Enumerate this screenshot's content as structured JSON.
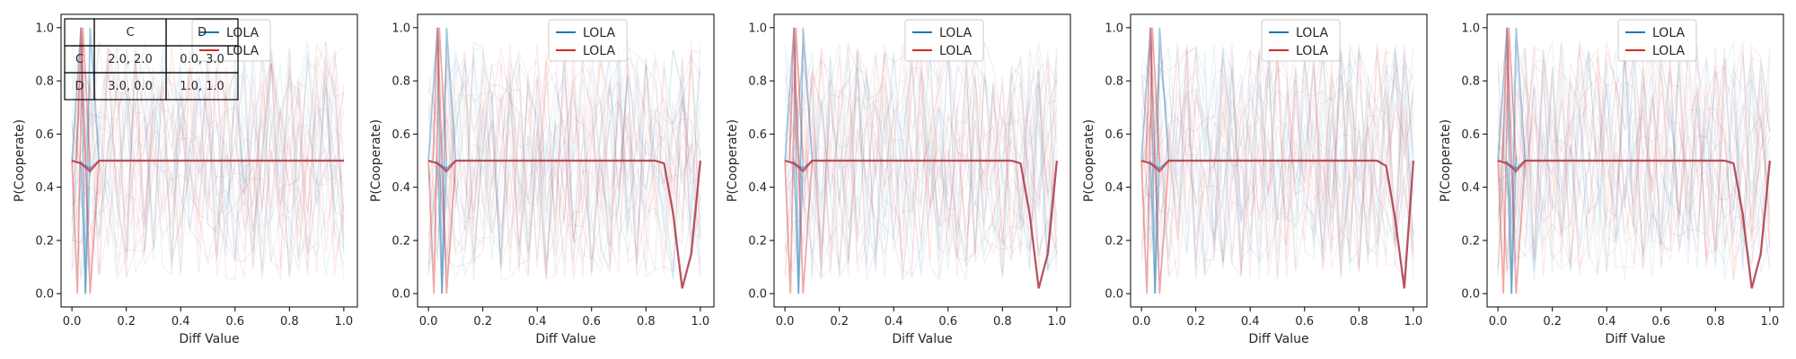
{
  "chart_data": [
    {
      "type": "line",
      "xlabel": "Diff Value",
      "ylabel": "P(Cooperate)",
      "xlim": [
        -0.04,
        1.05
      ],
      "ylim": [
        -0.05,
        1.05
      ],
      "x_ticks": [
        "0.0",
        "0.2",
        "0.4",
        "0.6",
        "0.8",
        "1.0"
      ],
      "y_ticks": [
        "0.0",
        "0.2",
        "0.4",
        "0.6",
        "0.8",
        "1.0"
      ],
      "grid": false,
      "legend_position": "top-center",
      "legend": [
        {
          "label": "LOLA",
          "color": "#1f77b4"
        },
        {
          "label": "LOLA",
          "color": "#d62728"
        }
      ],
      "payoff_table": {
        "header": [
          "",
          "C",
          "D"
        ],
        "rows": [
          [
            "C",
            "2.0, 2.0",
            "0.0, 3.0"
          ],
          [
            "D",
            "3.0, 0.0",
            "1.0, 1.0"
          ]
        ]
      },
      "x": [
        0.0,
        0.0333,
        0.0667,
        0.1,
        0.1333,
        0.1667,
        0.2,
        0.2333,
        0.2667,
        0.3,
        0.3333,
        0.3667,
        0.4,
        0.4333,
        0.4667,
        0.5,
        0.5333,
        0.5667,
        0.6,
        0.6333,
        0.6667,
        0.7,
        0.7333,
        0.7667,
        0.8,
        0.8333,
        0.8667,
        0.9,
        0.9333,
        0.9667,
        1.0
      ],
      "series": [
        {
          "color": "#1f77b4",
          "values": [
            0.5,
            0.49,
            0.47,
            0.5,
            0.5,
            0.5,
            0.5,
            0.5,
            0.5,
            0.5,
            0.5,
            0.5,
            0.5,
            0.5,
            0.5,
            0.5,
            0.5,
            0.5,
            0.5,
            0.5,
            0.5,
            0.5,
            0.5,
            0.5,
            0.5,
            0.5,
            0.5,
            0.5,
            0.5,
            0.5,
            0.5
          ]
        },
        {
          "color": "#d62728",
          "values": [
            0.5,
            0.49,
            0.46,
            0.5,
            0.5,
            0.5,
            0.5,
            0.5,
            0.5,
            0.5,
            0.5,
            0.5,
            0.5,
            0.5,
            0.5,
            0.5,
            0.5,
            0.5,
            0.5,
            0.5,
            0.5,
            0.5,
            0.5,
            0.5,
            0.5,
            0.5,
            0.5,
            0.5,
            0.5,
            0.5,
            0.5
          ]
        }
      ]
    },
    {
      "type": "line",
      "xlabel": "Diff Value",
      "ylabel": "P(Cooperate)",
      "xlim": [
        -0.04,
        1.05
      ],
      "ylim": [
        -0.05,
        1.05
      ],
      "x_ticks": [
        "0.0",
        "0.2",
        "0.4",
        "0.6",
        "0.8",
        "1.0"
      ],
      "y_ticks": [
        "0.0",
        "0.2",
        "0.4",
        "0.6",
        "0.8",
        "1.0"
      ],
      "grid": false,
      "legend_position": "top-center",
      "legend": [
        {
          "label": "LOLA",
          "color": "#1f77b4"
        },
        {
          "label": "LOLA",
          "color": "#d62728"
        }
      ],
      "x": [
        0.0,
        0.0333,
        0.0667,
        0.1,
        0.1333,
        0.1667,
        0.2,
        0.2333,
        0.2667,
        0.3,
        0.3333,
        0.3667,
        0.4,
        0.4333,
        0.4667,
        0.5,
        0.5333,
        0.5667,
        0.6,
        0.6333,
        0.6667,
        0.7,
        0.7333,
        0.7667,
        0.8,
        0.8333,
        0.8667,
        0.9,
        0.9333,
        0.9667,
        1.0
      ],
      "series": [
        {
          "color": "#1f77b4",
          "values": [
            0.5,
            0.49,
            0.47,
            0.5,
            0.5,
            0.5,
            0.5,
            0.5,
            0.5,
            0.5,
            0.5,
            0.5,
            0.5,
            0.5,
            0.5,
            0.5,
            0.5,
            0.5,
            0.5,
            0.5,
            0.5,
            0.5,
            0.5,
            0.5,
            0.5,
            0.5,
            0.49,
            0.3,
            0.02,
            0.15,
            0.5
          ]
        },
        {
          "color": "#d62728",
          "values": [
            0.5,
            0.49,
            0.46,
            0.5,
            0.5,
            0.5,
            0.5,
            0.5,
            0.5,
            0.5,
            0.5,
            0.5,
            0.5,
            0.5,
            0.5,
            0.5,
            0.5,
            0.5,
            0.5,
            0.5,
            0.5,
            0.5,
            0.5,
            0.5,
            0.5,
            0.5,
            0.49,
            0.3,
            0.02,
            0.15,
            0.5
          ]
        }
      ]
    },
    {
      "type": "line",
      "xlabel": "Diff Value",
      "ylabel": "P(Cooperate)",
      "xlim": [
        -0.04,
        1.05
      ],
      "ylim": [
        -0.05,
        1.05
      ],
      "x_ticks": [
        "0.0",
        "0.2",
        "0.4",
        "0.6",
        "0.8",
        "1.0"
      ],
      "y_ticks": [
        "0.0",
        "0.2",
        "0.4",
        "0.6",
        "0.8",
        "1.0"
      ],
      "grid": false,
      "legend_position": "top-center",
      "legend": [
        {
          "label": "LOLA",
          "color": "#1f77b4"
        },
        {
          "label": "LOLA",
          "color": "#d62728"
        }
      ],
      "x": [
        0.0,
        0.0333,
        0.0667,
        0.1,
        0.1333,
        0.1667,
        0.2,
        0.2333,
        0.2667,
        0.3,
        0.3333,
        0.3667,
        0.4,
        0.4333,
        0.4667,
        0.5,
        0.5333,
        0.5667,
        0.6,
        0.6333,
        0.6667,
        0.7,
        0.7333,
        0.7667,
        0.8,
        0.8333,
        0.8667,
        0.9,
        0.9333,
        0.9667,
        1.0
      ],
      "series": [
        {
          "color": "#1f77b4",
          "values": [
            0.5,
            0.49,
            0.47,
            0.5,
            0.5,
            0.5,
            0.5,
            0.5,
            0.5,
            0.5,
            0.5,
            0.5,
            0.5,
            0.5,
            0.5,
            0.5,
            0.5,
            0.5,
            0.5,
            0.5,
            0.5,
            0.5,
            0.5,
            0.5,
            0.5,
            0.5,
            0.49,
            0.3,
            0.02,
            0.15,
            0.5
          ]
        },
        {
          "color": "#d62728",
          "values": [
            0.5,
            0.49,
            0.46,
            0.5,
            0.5,
            0.5,
            0.5,
            0.5,
            0.5,
            0.5,
            0.5,
            0.5,
            0.5,
            0.5,
            0.5,
            0.5,
            0.5,
            0.5,
            0.5,
            0.5,
            0.5,
            0.5,
            0.5,
            0.5,
            0.5,
            0.5,
            0.49,
            0.3,
            0.02,
            0.15,
            0.5
          ]
        }
      ]
    },
    {
      "type": "line",
      "xlabel": "Diff Value",
      "ylabel": "P(Cooperate)",
      "xlim": [
        -0.04,
        1.05
      ],
      "ylim": [
        -0.05,
        1.05
      ],
      "x_ticks": [
        "0.0",
        "0.2",
        "0.4",
        "0.6",
        "0.8",
        "1.0"
      ],
      "y_ticks": [
        "0.0",
        "0.2",
        "0.4",
        "0.6",
        "0.8",
        "1.0"
      ],
      "grid": false,
      "legend_position": "top-center",
      "legend": [
        {
          "label": "LOLA",
          "color": "#1f77b4"
        },
        {
          "label": "LOLA",
          "color": "#d62728"
        }
      ],
      "x": [
        0.0,
        0.0333,
        0.0667,
        0.1,
        0.1333,
        0.1667,
        0.2,
        0.2333,
        0.2667,
        0.3,
        0.3333,
        0.3667,
        0.4,
        0.4333,
        0.4667,
        0.5,
        0.5333,
        0.5667,
        0.6,
        0.6333,
        0.6667,
        0.7,
        0.7333,
        0.7667,
        0.8,
        0.8333,
        0.8667,
        0.9,
        0.9333,
        0.9667,
        1.0
      ],
      "series": [
        {
          "color": "#1f77b4",
          "values": [
            0.5,
            0.49,
            0.47,
            0.5,
            0.5,
            0.5,
            0.5,
            0.5,
            0.5,
            0.5,
            0.5,
            0.5,
            0.5,
            0.5,
            0.5,
            0.5,
            0.5,
            0.5,
            0.5,
            0.5,
            0.5,
            0.5,
            0.5,
            0.5,
            0.5,
            0.5,
            0.5,
            0.48,
            0.28,
            0.02,
            0.5
          ]
        },
        {
          "color": "#d62728",
          "values": [
            0.5,
            0.49,
            0.46,
            0.5,
            0.5,
            0.5,
            0.5,
            0.5,
            0.5,
            0.5,
            0.5,
            0.5,
            0.5,
            0.5,
            0.5,
            0.5,
            0.5,
            0.5,
            0.5,
            0.5,
            0.5,
            0.5,
            0.5,
            0.5,
            0.5,
            0.5,
            0.5,
            0.48,
            0.28,
            0.02,
            0.5
          ]
        }
      ]
    },
    {
      "type": "line",
      "xlabel": "Diff Value",
      "ylabel": "P(Cooperate)",
      "xlim": [
        -0.04,
        1.05
      ],
      "ylim": [
        -0.05,
        1.05
      ],
      "x_ticks": [
        "0.0",
        "0.2",
        "0.4",
        "0.6",
        "0.8",
        "1.0"
      ],
      "y_ticks": [
        "0.0",
        "0.2",
        "0.4",
        "0.6",
        "0.8",
        "1.0"
      ],
      "grid": false,
      "legend_position": "top-center",
      "legend": [
        {
          "label": "LOLA",
          "color": "#1f77b4"
        },
        {
          "label": "LOLA",
          "color": "#d62728"
        }
      ],
      "x": [
        0.0,
        0.0333,
        0.0667,
        0.1,
        0.1333,
        0.1667,
        0.2,
        0.2333,
        0.2667,
        0.3,
        0.3333,
        0.3667,
        0.4,
        0.4333,
        0.4667,
        0.5,
        0.5333,
        0.5667,
        0.6,
        0.6333,
        0.6667,
        0.7,
        0.7333,
        0.7667,
        0.8,
        0.8333,
        0.8667,
        0.9,
        0.9333,
        0.9667,
        1.0
      ],
      "series": [
        {
          "color": "#1f77b4",
          "values": [
            0.5,
            0.49,
            0.47,
            0.5,
            0.5,
            0.5,
            0.5,
            0.5,
            0.5,
            0.5,
            0.5,
            0.5,
            0.5,
            0.5,
            0.5,
            0.5,
            0.5,
            0.5,
            0.5,
            0.5,
            0.5,
            0.5,
            0.5,
            0.5,
            0.5,
            0.5,
            0.49,
            0.3,
            0.02,
            0.15,
            0.5
          ]
        },
        {
          "color": "#d62728",
          "values": [
            0.5,
            0.49,
            0.46,
            0.5,
            0.5,
            0.5,
            0.5,
            0.5,
            0.5,
            0.5,
            0.5,
            0.5,
            0.5,
            0.5,
            0.5,
            0.5,
            0.5,
            0.5,
            0.5,
            0.5,
            0.5,
            0.5,
            0.5,
            0.5,
            0.5,
            0.5,
            0.49,
            0.3,
            0.02,
            0.15,
            0.5
          ]
        }
      ]
    }
  ]
}
